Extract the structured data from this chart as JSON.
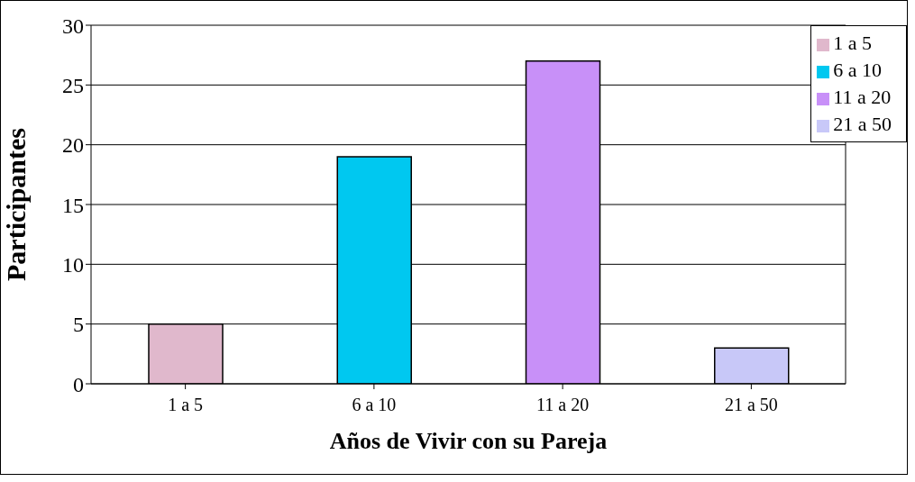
{
  "chart_data": {
    "type": "bar",
    "xlabel": "Años de Vivir con su Pareja",
    "ylabel": "Participantes",
    "categories": [
      "1 a 5",
      "6 a 10",
      "11 a 20",
      "21 a 50"
    ],
    "series": [
      {
        "name": "1 a 5",
        "color": "#e0b8cc",
        "values": [
          5,
          null,
          null,
          null
        ]
      },
      {
        "name": "6 a 10",
        "color": "#00c8f0",
        "values": [
          null,
          19,
          null,
          null
        ]
      },
      {
        "name": "11 a 20",
        "color": "#c890f8",
        "values": [
          null,
          null,
          27,
          null
        ]
      },
      {
        "name": "21 a 50",
        "color": "#c8c8f8",
        "values": [
          null,
          null,
          null,
          3
        ]
      }
    ],
    "stacked": true,
    "ylim": [
      0,
      30
    ],
    "yticks": [
      0,
      5,
      10,
      15,
      20,
      25,
      30
    ],
    "grid": "y",
    "legend": "top right"
  }
}
